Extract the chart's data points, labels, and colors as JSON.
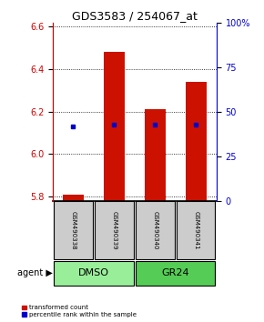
{
  "title": "GDS3583 / 254067_at",
  "samples": [
    "GSM490338",
    "GSM490339",
    "GSM490340",
    "GSM490341"
  ],
  "bar_bottom": 5.78,
  "red_bar_values": [
    5.81,
    6.48,
    6.21,
    6.34
  ],
  "blue_dot_values": [
    6.13,
    6.14,
    6.14,
    6.14
  ],
  "ylim_left": [
    5.78,
    6.62
  ],
  "ylim_right": [
    0,
    100
  ],
  "yticks_left": [
    5.8,
    6.0,
    6.2,
    6.4,
    6.6
  ],
  "yticks_right": [
    0,
    25,
    50,
    75,
    100
  ],
  "ytick_labels_right": [
    "0",
    "25",
    "50",
    "75",
    "100%"
  ],
  "left_color": "#cc0000",
  "right_color": "#0000cc",
  "bar_width": 0.5,
  "bar_color": "#cc1100",
  "dot_color": "#0000cc",
  "sample_box_color": "#cccccc",
  "group_defs": [
    {
      "label": "DMSO",
      "xmin": -0.5,
      "xmax": 1.5,
      "color": "#99ee99"
    },
    {
      "label": "GR24",
      "xmin": 1.5,
      "xmax": 3.5,
      "color": "#55cc55"
    }
  ],
  "legend_red": "transformed count",
  "legend_blue": "percentile rank within the sample",
  "title_fontsize": 9,
  "tick_fontsize": 7,
  "sample_fontsize": 5,
  "group_fontsize": 8,
  "legend_fontsize": 5,
  "agent_fontsize": 7
}
